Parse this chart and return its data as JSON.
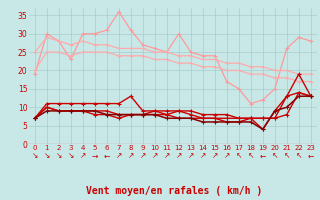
{
  "x": [
    0,
    1,
    2,
    3,
    4,
    5,
    6,
    7,
    8,
    9,
    10,
    11,
    12,
    13,
    14,
    15,
    16,
    17,
    18,
    19,
    20,
    21,
    22,
    23
  ],
  "line1": [
    19,
    30,
    28,
    23,
    30,
    30,
    31,
    36,
    31,
    27,
    26,
    25,
    30,
    25,
    24,
    24,
    17,
    15,
    11,
    12,
    15,
    26,
    29,
    28
  ],
  "line2": [
    25,
    29,
    28,
    27,
    28,
    27,
    27,
    26,
    26,
    26,
    25,
    25,
    24,
    24,
    23,
    23,
    22,
    22,
    21,
    21,
    20,
    20,
    19,
    19
  ],
  "line3": [
    20,
    25,
    25,
    24,
    25,
    25,
    25,
    24,
    24,
    24,
    23,
    23,
    22,
    22,
    21,
    21,
    20,
    20,
    19,
    19,
    18,
    18,
    17,
    17
  ],
  "line4": [
    7,
    11,
    11,
    11,
    11,
    11,
    11,
    11,
    13,
    9,
    9,
    9,
    9,
    9,
    8,
    8,
    8,
    7,
    7,
    7,
    7,
    13,
    14,
    13
  ],
  "line5": [
    7,
    10,
    9,
    9,
    9,
    9,
    9,
    8,
    8,
    8,
    9,
    8,
    9,
    8,
    7,
    7,
    7,
    7,
    7,
    7,
    7,
    8,
    14,
    13
  ],
  "line6": [
    7,
    10,
    9,
    9,
    9,
    8,
    8,
    7,
    8,
    8,
    8,
    8,
    7,
    7,
    7,
    7,
    6,
    6,
    7,
    4,
    9,
    13,
    19,
    13
  ],
  "line7": [
    7,
    9,
    9,
    9,
    9,
    9,
    8,
    8,
    8,
    8,
    8,
    7,
    7,
    7,
    6,
    6,
    6,
    6,
    6,
    4,
    9,
    10,
    13,
    13
  ],
  "background": "#c8e8e8",
  "grid_color": "#aacccc",
  "xlabel": "Vent moyen/en rafales ( km/h )",
  "ylim": [
    0,
    37
  ],
  "xlim": [
    -0.5,
    23.5
  ],
  "yticks": [
    0,
    5,
    10,
    15,
    20,
    25,
    30,
    35
  ],
  "line1_color": "#ff9999",
  "line2_color": "#ffaaaa",
  "line3_color": "#ffaaaa",
  "line4_color": "#cc0000",
  "line5_color": "#cc0000",
  "line6_color": "#cc0000",
  "line7_color": "#880000",
  "arrow_symbols": [
    "↘",
    "↘",
    "↘",
    "↘",
    "↗",
    "→",
    "←",
    "↗",
    "↗",
    "↗",
    "↗",
    "↗",
    "↗",
    "↗",
    "↗",
    "↗",
    "↗",
    "↖",
    "↖",
    "←",
    "↖",
    "↖",
    "↖",
    "←"
  ]
}
